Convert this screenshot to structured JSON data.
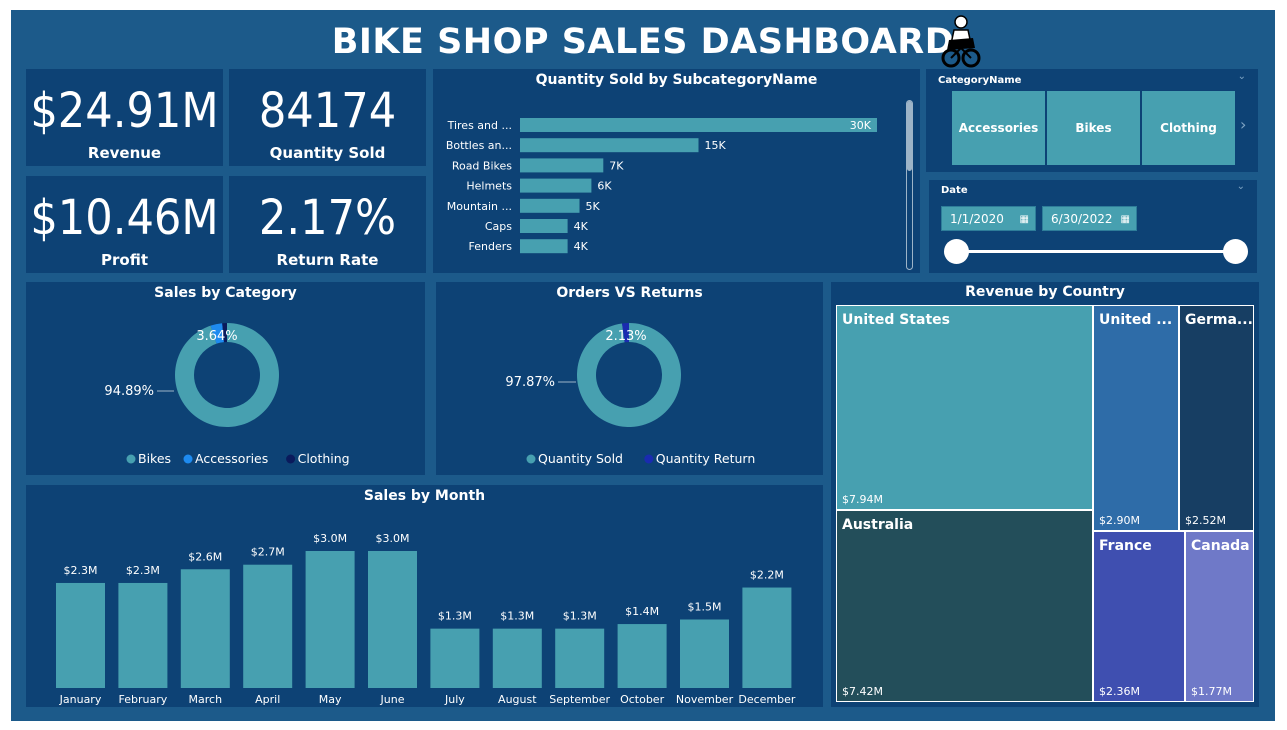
{
  "header": {
    "title": "BIKE SHOP SALES DASHBOARD",
    "logo_icon": "motorbike-rider-icon"
  },
  "kpis": [
    {
      "value": "$24.91M",
      "label": "Revenue"
    },
    {
      "value": "84174",
      "label": "Quantity Sold"
    },
    {
      "value": "$10.46M",
      "label": "Profit"
    },
    {
      "value": "2.17%",
      "label": "Return Rate"
    }
  ],
  "slicers": {
    "category": {
      "title": "CategoryName",
      "items": [
        "Accessories",
        "Bikes",
        "Clothing"
      ]
    },
    "date": {
      "title": "Date",
      "start": "1/1/2020",
      "end": "6/30/2022",
      "range": [
        0,
        1
      ]
    }
  },
  "subcategory_chart": {
    "title": "Quantity Sold by SubcategoryName",
    "chart_data": {
      "type": "bar",
      "orientation": "horizontal",
      "categories": [
        "Tires and ...",
        "Bottles an...",
        "Road Bikes",
        "Helmets",
        "Mountain ...",
        "Caps",
        "Fenders"
      ],
      "values": [
        30000,
        15000,
        7000,
        6000,
        5000,
        4000,
        4000
      ],
      "data_labels": [
        "30K",
        "15K",
        "7K",
        "6K",
        "5K",
        "4K",
        "4K"
      ],
      "xlim": [
        0,
        30000
      ],
      "color": "#47a0b0"
    }
  },
  "sales_by_category": {
    "title": "Sales by Category",
    "chart_data": {
      "type": "pie",
      "donut": true,
      "categories": [
        "Bikes",
        "Accessories",
        "Clothing"
      ],
      "values": [
        94.89,
        3.64,
        1.47
      ],
      "data_labels": [
        "94.89%",
        "3.64%",
        ""
      ],
      "colors": [
        "#47a0b0",
        "#1e8bf0",
        "#0a1a5c"
      ],
      "legend": "bottom"
    }
  },
  "orders_vs_returns": {
    "title": "Orders VS Returns",
    "chart_data": {
      "type": "pie",
      "donut": true,
      "categories": [
        "Quantity Sold",
        "Quantity Return"
      ],
      "values": [
        97.87,
        2.13
      ],
      "data_labels": [
        "97.87%",
        "2.13%"
      ],
      "colors": [
        "#47a0b0",
        "#1a2bb0"
      ],
      "legend": "bottom"
    }
  },
  "sales_by_month": {
    "title": "Sales by Month",
    "chart_data": {
      "type": "bar",
      "categories": [
        "January",
        "February",
        "March",
        "April",
        "May",
        "June",
        "July",
        "August",
        "September",
        "October",
        "November",
        "December"
      ],
      "values": [
        2.3,
        2.3,
        2.6,
        2.7,
        3.0,
        3.0,
        1.3,
        1.3,
        1.3,
        1.4,
        1.5,
        2.2
      ],
      "data_labels": [
        "$2.3M",
        "$2.3M",
        "$2.6M",
        "$2.7M",
        "$3.0M",
        "$3.0M",
        "$1.3M",
        "$1.3M",
        "$1.3M",
        "$1.4M",
        "$1.5M",
        "$2.2M"
      ],
      "ylim": [
        0,
        3.0
      ],
      "color": "#47a0b0"
    }
  },
  "revenue_by_country": {
    "title": "Revenue by Country",
    "chart_data": {
      "type": "treemap",
      "categories": [
        "United States",
        "Australia",
        "United ...",
        "Germa...",
        "France",
        "Canada"
      ],
      "values": [
        7.94,
        7.42,
        2.9,
        2.52,
        2.36,
        1.77
      ],
      "data_labels": [
        "$7.94M",
        "$7.42M",
        "$2.90M",
        "$2.52M",
        "$2.36M",
        "$1.77M"
      ],
      "colors": [
        "#47a0b0",
        "#234e5a",
        "#2e6ca8",
        "#173e63",
        "#3f4fb0",
        "#6f79c8"
      ]
    }
  }
}
